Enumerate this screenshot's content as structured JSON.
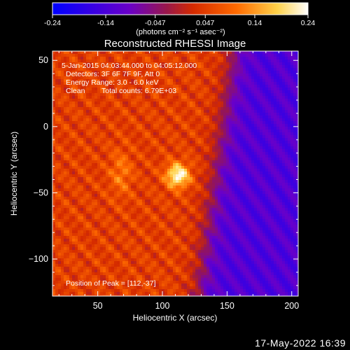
{
  "chart_data": {
    "type": "heatmap",
    "title": "Reconstructed RHESSI Image",
    "xlabel": "Heliocentric X (arcsec)",
    "ylabel": "Heliocentric Y (arcsec)",
    "xlim": [
      15,
      205
    ],
    "ylim": [
      -128,
      57
    ],
    "x_ticks": [
      50,
      100,
      150,
      200
    ],
    "y_ticks": [
      50,
      0,
      -50,
      -100
    ],
    "colorbar": {
      "ticks": [
        "-0.24",
        "-0.14",
        "-0.047",
        "0.047",
        "0.14",
        "0.24"
      ],
      "range": [
        -0.24,
        0.24
      ],
      "units_label": "(photons cm⁻² s⁻¹ asec⁻²)",
      "colors": [
        "#0000ff",
        "#7000c0",
        "#a01a40",
        "#d42a00",
        "#ff7a00",
        "#ffe060",
        "#ffffff"
      ]
    },
    "annotations": [
      "5-Jan-2015 04:03:44.000 to 04:05:12.000",
      "Detectors: 3F 6F 7F 9F, Att 0",
      "Energy Range: 3.0 - 6.0 keV",
      "Clean",
      "Total counts: 6.79E+03"
    ],
    "peak_label": "Position of Peak = [112,-37]",
    "peak": {
      "x": 112,
      "y": -37,
      "value": 0.24
    },
    "secondary_source": {
      "x": 68,
      "y": -35,
      "value": 0.12
    },
    "background_level": 0.05,
    "negative_region": "upper-right"
  },
  "timestamp": "17-May-2022 16:39"
}
